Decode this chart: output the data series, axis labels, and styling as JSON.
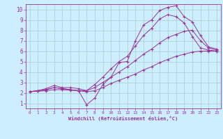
{
  "xlabel": "Windchill (Refroidissement éolien,°C)",
  "background_color": "#cceeff",
  "grid_color": "#aacccc",
  "line_color": "#993399",
  "xlim": [
    -0.5,
    23.5
  ],
  "ylim": [
    0.5,
    10.5
  ],
  "xticks": [
    0,
    1,
    2,
    3,
    4,
    5,
    6,
    7,
    8,
    9,
    10,
    11,
    12,
    13,
    14,
    15,
    16,
    17,
    18,
    19,
    20,
    21,
    22,
    23
  ],
  "yticks": [
    1,
    2,
    3,
    4,
    5,
    6,
    7,
    8,
    9,
    10
  ],
  "line1_x": [
    0,
    1,
    2,
    3,
    4,
    5,
    6,
    7,
    8,
    9,
    10,
    11,
    12,
    13,
    14,
    15,
    16,
    17,
    18,
    19,
    20,
    21,
    22,
    23
  ],
  "line1_y": [
    2.1,
    2.2,
    2.3,
    2.5,
    2.4,
    2.3,
    2.2,
    0.85,
    1.5,
    2.8,
    3.5,
    4.9,
    5.0,
    7.0,
    8.5,
    9.0,
    9.9,
    10.2,
    10.35,
    9.3,
    8.8,
    7.5,
    6.4,
    6.2
  ],
  "line2_x": [
    0,
    1,
    2,
    3,
    4,
    5,
    6,
    7,
    8,
    9,
    10,
    11,
    12,
    13,
    14,
    15,
    16,
    17,
    18,
    19,
    20,
    21,
    22,
    23
  ],
  "line2_y": [
    2.1,
    2.2,
    2.4,
    2.7,
    2.5,
    2.5,
    2.4,
    2.2,
    2.8,
    3.5,
    4.3,
    5.0,
    5.5,
    6.5,
    7.5,
    8.2,
    9.1,
    9.5,
    9.3,
    8.7,
    7.4,
    6.3,
    6.1,
    6.0
  ],
  "line3_x": [
    0,
    1,
    2,
    3,
    4,
    5,
    6,
    7,
    8,
    9,
    10,
    11,
    12,
    13,
    14,
    15,
    16,
    17,
    18,
    19,
    20,
    21,
    22,
    23
  ],
  "line3_y": [
    2.1,
    2.2,
    2.3,
    2.5,
    2.4,
    2.3,
    2.2,
    2.2,
    2.5,
    3.0,
    3.5,
    4.0,
    4.5,
    5.1,
    5.7,
    6.2,
    6.8,
    7.3,
    7.6,
    7.9,
    8.0,
    7.0,
    6.3,
    6.1
  ],
  "line4_x": [
    0,
    1,
    2,
    3,
    4,
    5,
    6,
    7,
    8,
    9,
    10,
    11,
    12,
    13,
    14,
    15,
    16,
    17,
    18,
    19,
    20,
    21,
    22,
    23
  ],
  "line4_y": [
    2.1,
    2.15,
    2.2,
    2.3,
    2.3,
    2.25,
    2.2,
    2.1,
    2.2,
    2.5,
    2.9,
    3.2,
    3.5,
    3.8,
    4.2,
    4.5,
    4.9,
    5.2,
    5.5,
    5.7,
    5.9,
    6.0,
    6.0,
    6.0
  ]
}
